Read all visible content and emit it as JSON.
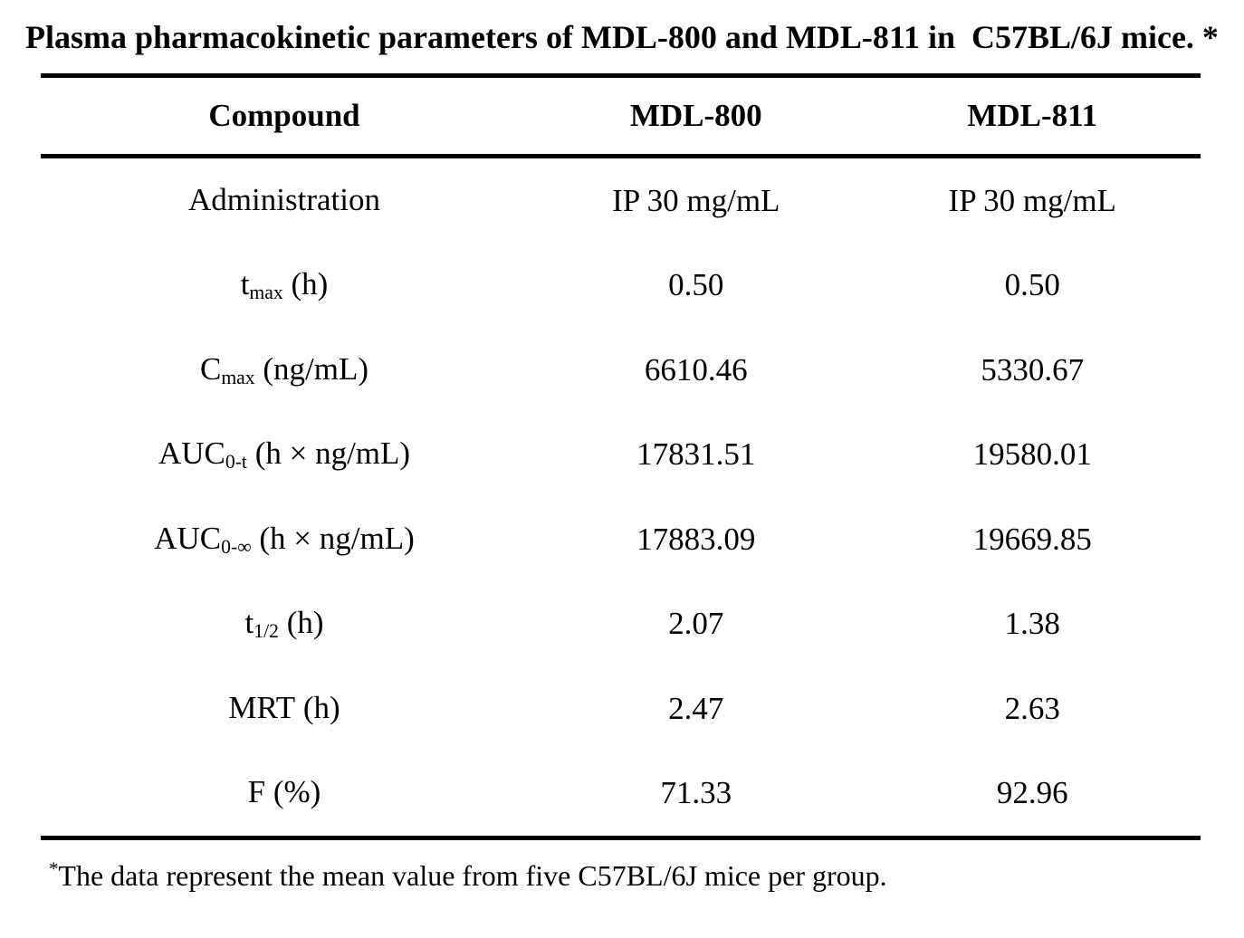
{
  "title": "Plasma pharmacokinetic parameters of MDL-800 and MDL-811 in  C57BL/6J mice. *",
  "table": {
    "headers": [
      "Compound",
      "MDL-800",
      "MDL-811"
    ],
    "rows": [
      {
        "param_pre": "Administration",
        "param_sub": "",
        "param_post": "",
        "mdl800": "IP 30 mg/mL",
        "mdl811": "IP 30 mg/mL"
      },
      {
        "param_pre": "t",
        "param_sub": "max",
        "param_post": " (h)",
        "mdl800": "0.50",
        "mdl811": "0.50"
      },
      {
        "param_pre": "C",
        "param_sub": "max",
        "param_post": " (ng/mL)",
        "mdl800": "6610.46",
        "mdl811": "5330.67"
      },
      {
        "param_pre": "AUC",
        "param_sub": "0-t",
        "param_post": " (h × ng/mL)",
        "mdl800": "17831.51",
        "mdl811": "19580.01"
      },
      {
        "param_pre": "AUC",
        "param_sub": "0-∞",
        "param_post": " (h × ng/mL)",
        "mdl800": "17883.09",
        "mdl811": "19669.85"
      },
      {
        "param_pre": "t",
        "param_sub": "1/2",
        "param_post": " (h)",
        "mdl800": "2.07",
        "mdl811": "1.38"
      },
      {
        "param_pre": "MRT",
        "param_sub": "",
        "param_post": " (h)",
        "mdl800": "2.47",
        "mdl811": "2.63"
      },
      {
        "param_pre": "F",
        "param_sub": "",
        "param_post": " (%)",
        "mdl800": "71.33",
        "mdl811": "92.96"
      }
    ]
  },
  "footnote": {
    "marker": "*",
    "text": "The data represent the mean value from five C57BL/6J mice per group."
  },
  "colors": {
    "text": "#000000",
    "background": "#ffffff",
    "rule": "#000000"
  }
}
